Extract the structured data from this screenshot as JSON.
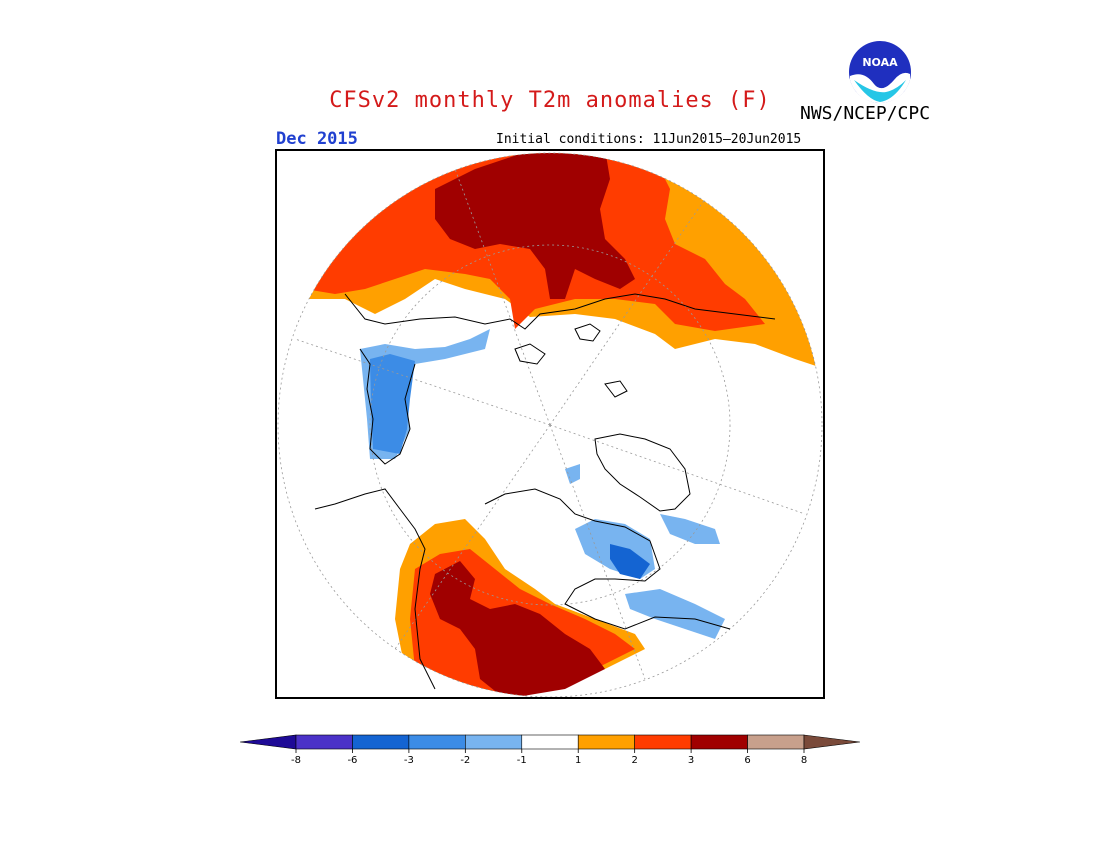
{
  "header": {
    "title": "CFSv2 monthly T2m anomalies (F)",
    "month": "Dec 2015",
    "initial_conditions": "Initial conditions: 11Jun2015–20Jun2015",
    "agency": "NWS/NCEP/CPC",
    "logo_text": "NOAA"
  },
  "legend": {
    "colors": [
      "#1e0a96",
      "#4b32c8",
      "#1464d2",
      "#3c8ce6",
      "#78b4f0",
      "#ffffff",
      "#ffa000",
      "#ff3c00",
      "#a00000",
      "#c8a08c",
      "#7a4a3a"
    ],
    "tick_labels": [
      "-8",
      "-6",
      "-3",
      "-2",
      "-1",
      "1",
      "2",
      "3",
      "6",
      "8"
    ]
  },
  "map": {
    "projection": "north-polar-stereographic",
    "variable": "T2m anomaly"
  }
}
